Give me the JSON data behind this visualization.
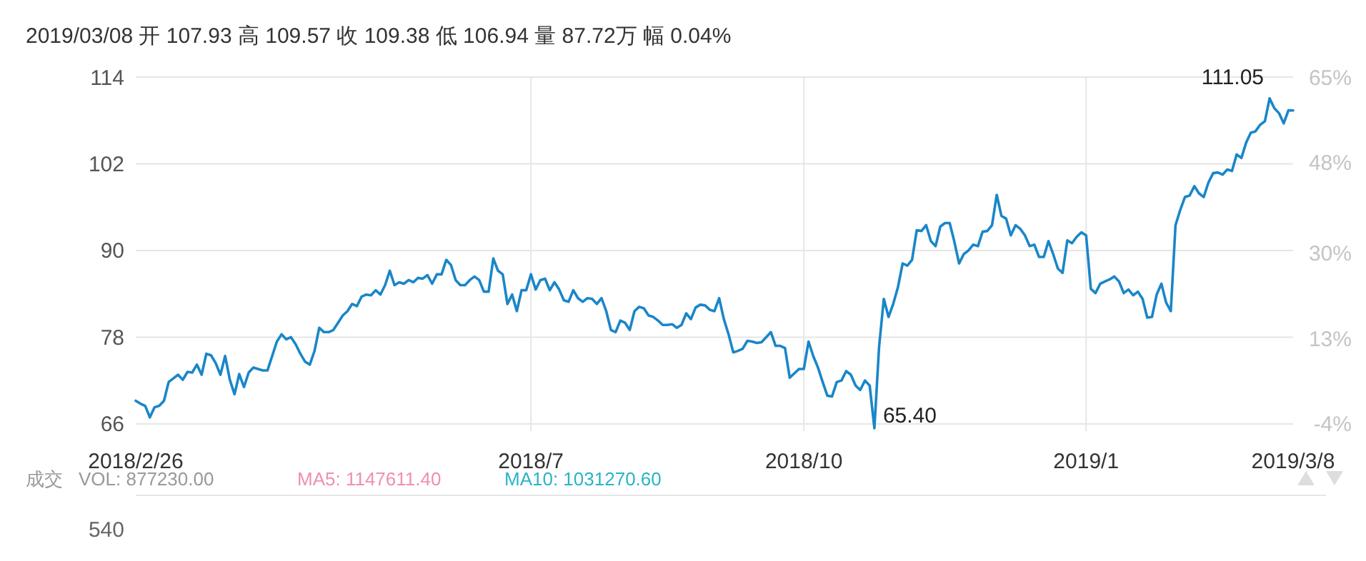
{
  "chart_data": {
    "type": "line",
    "title": "2019/03/08 开 107.93 高 109.57 收 109.38 低 106.94 量 87.72万 幅 0.04%",
    "categories": [
      "2018/2/26",
      null,
      null,
      null,
      null,
      null,
      null,
      null,
      null,
      null,
      null,
      null,
      null,
      null,
      null,
      null,
      null,
      null,
      null,
      null,
      null,
      null,
      null,
      null,
      null,
      null,
      null,
      null,
      null,
      null,
      null,
      null,
      null,
      null,
      null,
      null,
      null,
      null,
      null,
      null,
      null,
      null,
      null,
      null,
      null,
      null,
      null,
      null,
      null,
      null,
      null,
      null,
      null,
      null,
      null,
      null,
      null,
      null,
      null,
      null,
      null,
      null,
      null,
      null,
      null,
      null,
      null,
      null,
      null,
      null,
      null,
      null,
      null,
      null,
      null,
      null,
      null,
      null,
      null,
      null,
      null,
      null,
      null,
      null,
      "2018/7",
      null,
      null,
      null,
      null,
      null,
      null,
      null,
      null,
      null,
      null,
      null,
      null,
      null,
      null,
      null,
      null,
      null,
      null,
      null,
      null,
      null,
      null,
      null,
      null,
      null,
      null,
      null,
      null,
      null,
      null,
      null,
      null,
      null,
      null,
      null,
      null,
      null,
      null,
      null,
      null,
      null,
      null,
      null,
      null,
      null,
      null,
      null,
      null,
      null,
      null,
      null,
      null,
      null,
      null,
      null,
      null,
      null,
      "2018/10",
      null,
      null,
      null,
      null,
      null,
      null,
      null,
      null,
      null,
      null,
      null,
      null,
      null,
      null,
      null,
      null,
      null,
      null,
      null,
      null,
      null,
      null,
      null,
      null,
      null,
      null,
      null,
      null,
      null,
      null,
      null,
      null,
      null,
      null,
      null,
      null,
      null,
      null,
      null,
      null,
      null,
      null,
      null,
      null,
      null,
      null,
      null,
      null,
      null,
      null,
      null,
      null,
      null,
      null,
      null,
      null,
      null,
      null,
      null,
      "2019/1",
      null,
      null,
      null,
      null,
      null,
      null,
      null,
      null,
      null,
      null,
      null,
      null,
      null,
      null,
      null,
      null,
      null,
      null,
      null,
      null,
      null,
      null,
      null,
      null,
      null,
      null,
      null,
      null,
      null,
      null,
      null,
      null,
      null,
      null,
      null,
      null,
      null,
      null,
      null,
      null,
      null,
      null,
      null,
      "2019/3/8"
    ],
    "series": [
      {
        "color": "#1a86c8",
        "values": [
          69.2,
          68.8,
          68.5,
          66.9,
          68.3,
          68.5,
          69.2,
          71.8,
          72.3,
          72.8,
          72.1,
          73.2,
          73.1,
          74.2,
          72.8,
          75.7,
          75.5,
          74.4,
          72.8,
          75.4,
          72.1,
          70.1,
          72.9,
          71.1,
          73.1,
          73.8,
          73.6,
          73.4,
          73.4,
          75.4,
          77.4,
          78.4,
          77.7,
          78.0,
          77.0,
          75.7,
          74.6,
          74.2,
          76.1,
          79.3,
          78.7,
          78.7,
          79.0,
          80.0,
          81.0,
          81.6,
          82.6,
          82.3,
          83.6,
          83.9,
          83.8,
          84.5,
          83.9,
          85.2,
          87.2,
          85.2,
          85.6,
          85.4,
          85.9,
          85.6,
          86.2,
          86.1,
          86.6,
          85.4,
          86.7,
          86.7,
          88.7,
          88.0,
          85.9,
          85.2,
          85.2,
          85.9,
          86.4,
          85.9,
          84.3,
          84.3,
          88.9,
          87.2,
          86.7,
          82.6,
          83.9,
          81.6,
          84.5,
          84.5,
          86.7,
          84.6,
          85.9,
          86.1,
          84.5,
          85.6,
          84.6,
          83.1,
          82.9,
          84.5,
          83.4,
          82.9,
          83.4,
          83.3,
          82.6,
          83.4,
          81.6,
          79.0,
          78.7,
          80.3,
          80.0,
          79.0,
          81.6,
          82.2,
          82.0,
          81.0,
          80.8,
          80.3,
          79.7,
          79.7,
          79.8,
          79.3,
          79.7,
          81.3,
          80.5,
          82.1,
          82.5,
          82.4,
          81.8,
          81.6,
          83.4,
          80.5,
          78.4,
          75.9,
          76.1,
          76.4,
          77.5,
          77.4,
          77.2,
          77.3,
          78.0,
          78.7,
          76.8,
          76.8,
          76.5,
          72.4,
          73.0,
          73.6,
          73.6,
          77.4,
          75.4,
          73.8,
          71.8,
          69.9,
          69.8,
          71.8,
          72.0,
          73.3,
          72.8,
          71.3,
          70.7,
          72.0,
          71.3,
          65.4,
          76.7,
          83.3,
          80.8,
          82.6,
          84.9,
          88.2,
          87.9,
          88.7,
          92.8,
          92.7,
          93.5,
          91.3,
          90.6,
          93.3,
          93.8,
          93.8,
          91.2,
          88.2,
          89.5,
          90.0,
          90.8,
          90.6,
          92.6,
          92.7,
          93.5,
          97.7,
          94.8,
          94.4,
          92.1,
          93.5,
          93.0,
          92.1,
          90.6,
          90.8,
          89.1,
          89.1,
          91.3,
          89.5,
          87.5,
          86.9,
          91.4,
          91.0,
          91.9,
          92.5,
          92.1,
          84.7,
          84.1,
          85.4,
          85.7,
          86.0,
          86.4,
          85.7,
          84.1,
          84.6,
          83.8,
          84.3,
          83.3,
          80.7,
          80.8,
          83.9,
          85.4,
          82.8,
          81.6,
          93.5,
          95.6,
          97.4,
          97.6,
          98.9,
          97.9,
          97.4,
          99.4,
          100.7,
          100.8,
          100.5,
          101.2,
          101.0,
          103.3,
          102.8,
          104.9,
          106.3,
          106.5,
          107.4,
          107.9,
          111.05,
          109.7,
          109.0,
          107.6,
          109.4,
          109.38
        ]
      }
    ],
    "ylim": [
      65,
      114
    ],
    "yticks": [
      66,
      78,
      90,
      102,
      114
    ],
    "y2lim": [
      -5.44,
      65
    ],
    "y2ticks": [
      {
        "value": -4,
        "label": "-4%"
      },
      {
        "value": 13,
        "label": "13%"
      },
      {
        "value": 30,
        "label": "30%"
      },
      {
        "value": 48,
        "label": "48%"
      },
      {
        "value": 65,
        "label": "65%"
      }
    ],
    "grid": true,
    "annotations": [
      "65.40",
      "111.05",
      "成交",
      "VOL: 877230.00",
      "MA5: 1147611.40",
      "MA10: 1031270.60",
      "540"
    ]
  }
}
